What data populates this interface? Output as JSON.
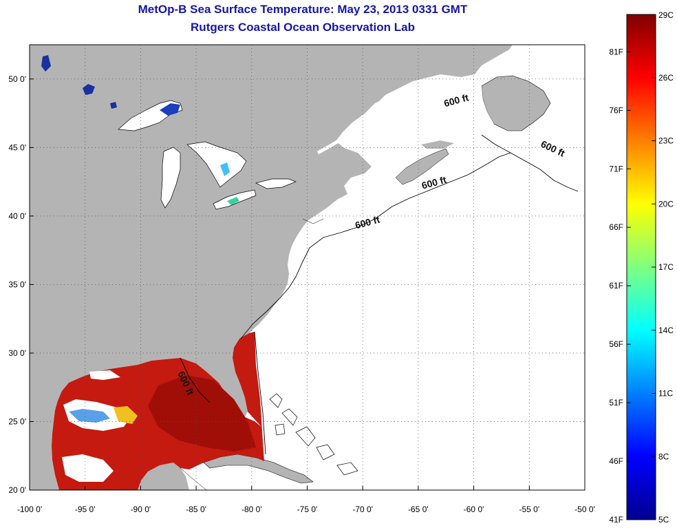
{
  "header": {
    "title": "MetOp-B Sea Surface Temperature:  May 23, 2013 0331 GMT",
    "subtitle": "Rutgers Coastal Ocean Observation Lab"
  },
  "map": {
    "lon_range": [
      -100,
      -50
    ],
    "lat_range": [
      20,
      52.5
    ],
    "lon_ticks": [
      {
        "value": -100,
        "label": "-100 0'"
      },
      {
        "value": -95,
        "label": "-95 0'"
      },
      {
        "value": -90,
        "label": "-90 0'"
      },
      {
        "value": -85,
        "label": "-85 0'"
      },
      {
        "value": -80,
        "label": "-80 0'"
      },
      {
        "value": -75,
        "label": "-75 0'"
      },
      {
        "value": -70,
        "label": "-70 0'"
      },
      {
        "value": -65,
        "label": "-65 0'"
      },
      {
        "value": -60,
        "label": "-60 0'"
      },
      {
        "value": -55,
        "label": "-55 0'"
      },
      {
        "value": -50,
        "label": "-50 0'"
      }
    ],
    "lat_ticks": [
      {
        "value": 20,
        "label": "20 0'"
      },
      {
        "value": 25,
        "label": "25 0'"
      },
      {
        "value": 30,
        "label": "30 0'"
      },
      {
        "value": 35,
        "label": "35 0'"
      },
      {
        "value": 40,
        "label": "40 0'"
      },
      {
        "value": 45,
        "label": "45 0'"
      },
      {
        "value": 50,
        "label": "50 0'"
      }
    ],
    "grid": "dotted",
    "land_color": "#b4b4b4",
    "ocean_nodata_color": "#ffffff",
    "isobath_labels": [
      {
        "text": "600 ft",
        "lon": -61.5,
        "lat": 48.2
      },
      {
        "text": "600 ft",
        "lon": -53.0,
        "lat": 44.7
      },
      {
        "text": "600 ft",
        "lon": -63.5,
        "lat": 42.2
      },
      {
        "text": "600 ft",
        "lon": -69.5,
        "lat": 39.3
      },
      {
        "text": "600 ft",
        "lon": -86.2,
        "lat": 27.7
      }
    ]
  },
  "colorbar": {
    "temp_range_c": [
      5,
      29
    ],
    "celsius_labels": [
      {
        "value": 29,
        "label": "29C"
      },
      {
        "value": 26,
        "label": "26C"
      },
      {
        "value": 23,
        "label": "23C"
      },
      {
        "value": 20,
        "label": "20C"
      },
      {
        "value": 17,
        "label": "17C"
      },
      {
        "value": 14,
        "label": "14C"
      },
      {
        "value": 11,
        "label": "11C"
      },
      {
        "value": 8,
        "label": "8C"
      },
      {
        "value": 5,
        "label": "5C"
      }
    ],
    "fahrenheit_labels": [
      {
        "value": 81,
        "label": "81F"
      },
      {
        "value": 76,
        "label": "76F"
      },
      {
        "value": 71,
        "label": "71F"
      },
      {
        "value": 66,
        "label": "66F"
      },
      {
        "value": 61,
        "label": "61F"
      },
      {
        "value": 56,
        "label": "56F"
      },
      {
        "value": 51,
        "label": "51F"
      },
      {
        "value": 46,
        "label": "46F"
      },
      {
        "value": 41,
        "label": "41F"
      }
    ],
    "colormap": [
      "#00008f",
      "#0000ff",
      "#00ffff",
      "#ffff00",
      "#ff0000",
      "#800000"
    ]
  }
}
